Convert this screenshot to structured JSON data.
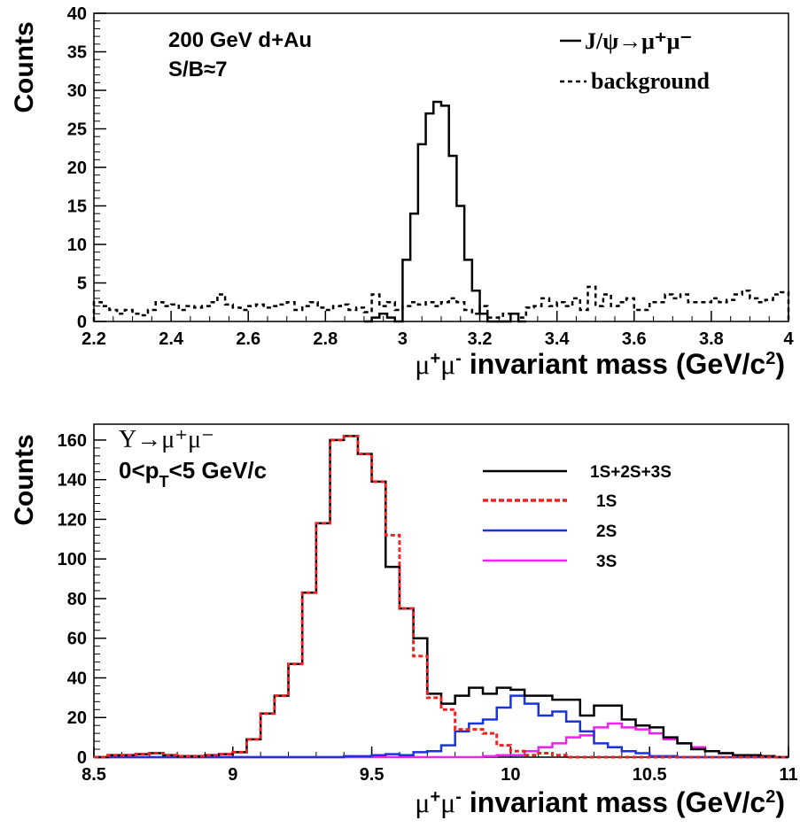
{
  "chart_data": [
    {
      "type": "line",
      "ylabel": "Counts",
      "xlabel": "μ⁺μ⁻ invariant mass (GeV/c²)",
      "xlim": [
        2.2,
        4.0
      ],
      "ylim": [
        0,
        40
      ],
      "x_ticks": [
        "2.2",
        "2.4",
        "2.6",
        "2.8",
        "3",
        "3.2",
        "3.4",
        "3.6",
        "3.8",
        "4"
      ],
      "x_tick_values": [
        2.2,
        2.4,
        2.6,
        2.8,
        3.0,
        3.2,
        3.4,
        3.6,
        3.8,
        4.0
      ],
      "y_ticks": [
        "0",
        "5",
        "10",
        "15",
        "20",
        "25",
        "30",
        "35",
        "40"
      ],
      "y_tick_values": [
        0,
        5,
        10,
        15,
        20,
        25,
        30,
        35,
        40
      ],
      "annotations": [
        "200 GeV d+Au",
        "S/B≈7"
      ],
      "legend_position": "top-right",
      "bin_width": 0.02,
      "series": [
        {
          "name": "J/ψ→μ⁺μ⁻",
          "style": "solid",
          "color": "#000000",
          "x": [
            2.9,
            2.92,
            2.94,
            2.96,
            2.98,
            3.0,
            3.02,
            3.04,
            3.06,
            3.08,
            3.1,
            3.12,
            3.14,
            3.16,
            3.18,
            3.2,
            3.22,
            3.24,
            3.26,
            3.28,
            3.3
          ],
          "values": [
            0,
            0.5,
            1,
            0.5,
            0,
            8,
            14,
            23,
            27,
            28.5,
            28,
            21.5,
            15,
            8,
            4,
            1,
            0,
            0,
            0,
            1,
            0
          ]
        },
        {
          "name": "background",
          "style": "dashed",
          "color": "#000000",
          "x": [
            2.2,
            2.22,
            2.24,
            2.26,
            2.28,
            2.3,
            2.32,
            2.34,
            2.36,
            2.38,
            2.4,
            2.42,
            2.44,
            2.46,
            2.48,
            2.5,
            2.52,
            2.54,
            2.56,
            2.58,
            2.6,
            2.62,
            2.64,
            2.66,
            2.68,
            2.7,
            2.72,
            2.74,
            2.76,
            2.78,
            2.8,
            2.82,
            2.84,
            2.86,
            2.88,
            2.9,
            2.92,
            2.94,
            2.96,
            2.98,
            3.0,
            3.02,
            3.04,
            3.06,
            3.08,
            3.1,
            3.12,
            3.14,
            3.16,
            3.18,
            3.2,
            3.22,
            3.24,
            3.26,
            3.28,
            3.3,
            3.32,
            3.34,
            3.36,
            3.38,
            3.4,
            3.42,
            3.44,
            3.46,
            3.48,
            3.5,
            3.52,
            3.54,
            3.56,
            3.58,
            3.6,
            3.62,
            3.64,
            3.66,
            3.68,
            3.7,
            3.72,
            3.74,
            3.76,
            3.78,
            3.8,
            3.82,
            3.84,
            3.86,
            3.88,
            3.9,
            3.92,
            3.94,
            3.96,
            3.98
          ],
          "values": [
            2.5,
            2,
            1.5,
            1,
            1.5,
            1,
            0.8,
            1.5,
            2.5,
            2,
            2.2,
            1.5,
            2,
            1.8,
            2,
            2.5,
            3.5,
            2.2,
            1.8,
            1.5,
            2,
            2.2,
            1.8,
            2,
            2.2,
            2.5,
            1.5,
            2,
            2.5,
            1.8,
            1.5,
            2,
            2.2,
            1.5,
            1.8,
            1.2,
            3.5,
            2,
            2.5,
            1.5,
            2,
            2.5,
            2.2,
            2.5,
            2,
            2.5,
            3,
            2.5,
            1.5,
            1,
            2,
            0.5,
            0.5,
            1,
            1,
            0.5,
            1.8,
            2,
            3,
            2,
            2.5,
            2,
            3,
            1.5,
            4.5,
            2,
            3.5,
            2,
            2.5,
            3,
            1.5,
            1.5,
            2.5,
            2.5,
            3.5,
            3,
            3.5,
            2.5,
            2.5,
            2.5,
            3,
            2.5,
            2.8,
            3.5,
            4,
            3,
            2.5,
            2.8,
            3.5,
            3.8
          ]
        }
      ]
    },
    {
      "type": "line",
      "ylabel": "Counts",
      "xlabel": "μ⁺μ⁻ invariant mass (GeV/c²)",
      "xlim": [
        8.5,
        11.0
      ],
      "ylim": [
        0,
        168
      ],
      "x_ticks": [
        "8.5",
        "9",
        "9.5",
        "10",
        "10.5",
        "11"
      ],
      "x_tick_values": [
        8.5,
        9.0,
        9.5,
        10.0,
        10.5,
        11.0
      ],
      "y_ticks": [
        "0",
        "20",
        "40",
        "60",
        "80",
        "100",
        "120",
        "140",
        "160"
      ],
      "y_tick_values": [
        0,
        20,
        40,
        60,
        80,
        100,
        120,
        140,
        160
      ],
      "annotations": [
        "Υ→μ⁺μ⁻",
        "0<p_T<5 GeV/c"
      ],
      "legend_position": "top-right",
      "bin_width": 0.05,
      "x": [
        8.5,
        8.55,
        8.6,
        8.65,
        8.7,
        8.75,
        8.8,
        8.85,
        8.9,
        8.95,
        9.0,
        9.05,
        9.1,
        9.15,
        9.2,
        9.25,
        9.3,
        9.35,
        9.4,
        9.45,
        9.5,
        9.55,
        9.6,
        9.65,
        9.7,
        9.75,
        9.8,
        9.85,
        9.9,
        9.95,
        10.0,
        10.05,
        10.1,
        10.15,
        10.2,
        10.25,
        10.3,
        10.35,
        10.4,
        10.45,
        10.5,
        10.55,
        10.6,
        10.65,
        10.7,
        10.75,
        10.8,
        10.85,
        10.9,
        10.95
      ],
      "series": [
        {
          "name": "1S+2S+3S",
          "color": "#000000",
          "style": "solid",
          "values": [
            0,
            1,
            1,
            1.5,
            2,
            1,
            0.5,
            0.5,
            1,
            1.5,
            2.5,
            9,
            22,
            31,
            47,
            83,
            118,
            160,
            162,
            153,
            139,
            96,
            75,
            60,
            32,
            27,
            31,
            35,
            32,
            35,
            34,
            31,
            31,
            29,
            29,
            21,
            26,
            26,
            19,
            16,
            15,
            10,
            7,
            4,
            3,
            2,
            1,
            1,
            0.5,
            0
          ]
        },
        {
          "name": "1S",
          "color": "#ee2222",
          "style": "dotted",
          "values": [
            0,
            1,
            1,
            1.5,
            2,
            1,
            0.5,
            0.5,
            1,
            1.5,
            2.5,
            9,
            22,
            31,
            47,
            83,
            118,
            160,
            162,
            153,
            139,
            112,
            75,
            51,
            30,
            24,
            14,
            14,
            12,
            6,
            3,
            1,
            2,
            1,
            0,
            0,
            0,
            0,
            0,
            0,
            0,
            0,
            0,
            0,
            0,
            0,
            0,
            0,
            0,
            0
          ]
        },
        {
          "name": "2S",
          "color": "#1a33dd",
          "style": "solid",
          "values": [
            0,
            0,
            0,
            0,
            0,
            0,
            0,
            0,
            0,
            0,
            0,
            0,
            0,
            0,
            0,
            0,
            0,
            0,
            0.5,
            0.5,
            1,
            1.5,
            1,
            2.5,
            3,
            6,
            13,
            17,
            19,
            25,
            31,
            27,
            21,
            23,
            18,
            13,
            7,
            5,
            3,
            2,
            0.5,
            0.5,
            0,
            0,
            0,
            0,
            0,
            0,
            0,
            0
          ]
        },
        {
          "name": "3S",
          "color": "#ee22ee",
          "style": "solid",
          "values": [
            0,
            0,
            0,
            0,
            0,
            0,
            0,
            0,
            0,
            0,
            0,
            0,
            0,
            0,
            0,
            0,
            0,
            0,
            0,
            0,
            0,
            0,
            0,
            0,
            0,
            0,
            0,
            0,
            0.5,
            1,
            1,
            3,
            5,
            7,
            10,
            11,
            15,
            17,
            15,
            14,
            12,
            9,
            7,
            5,
            3,
            2,
            1,
            1,
            0.5,
            0
          ]
        }
      ]
    }
  ]
}
